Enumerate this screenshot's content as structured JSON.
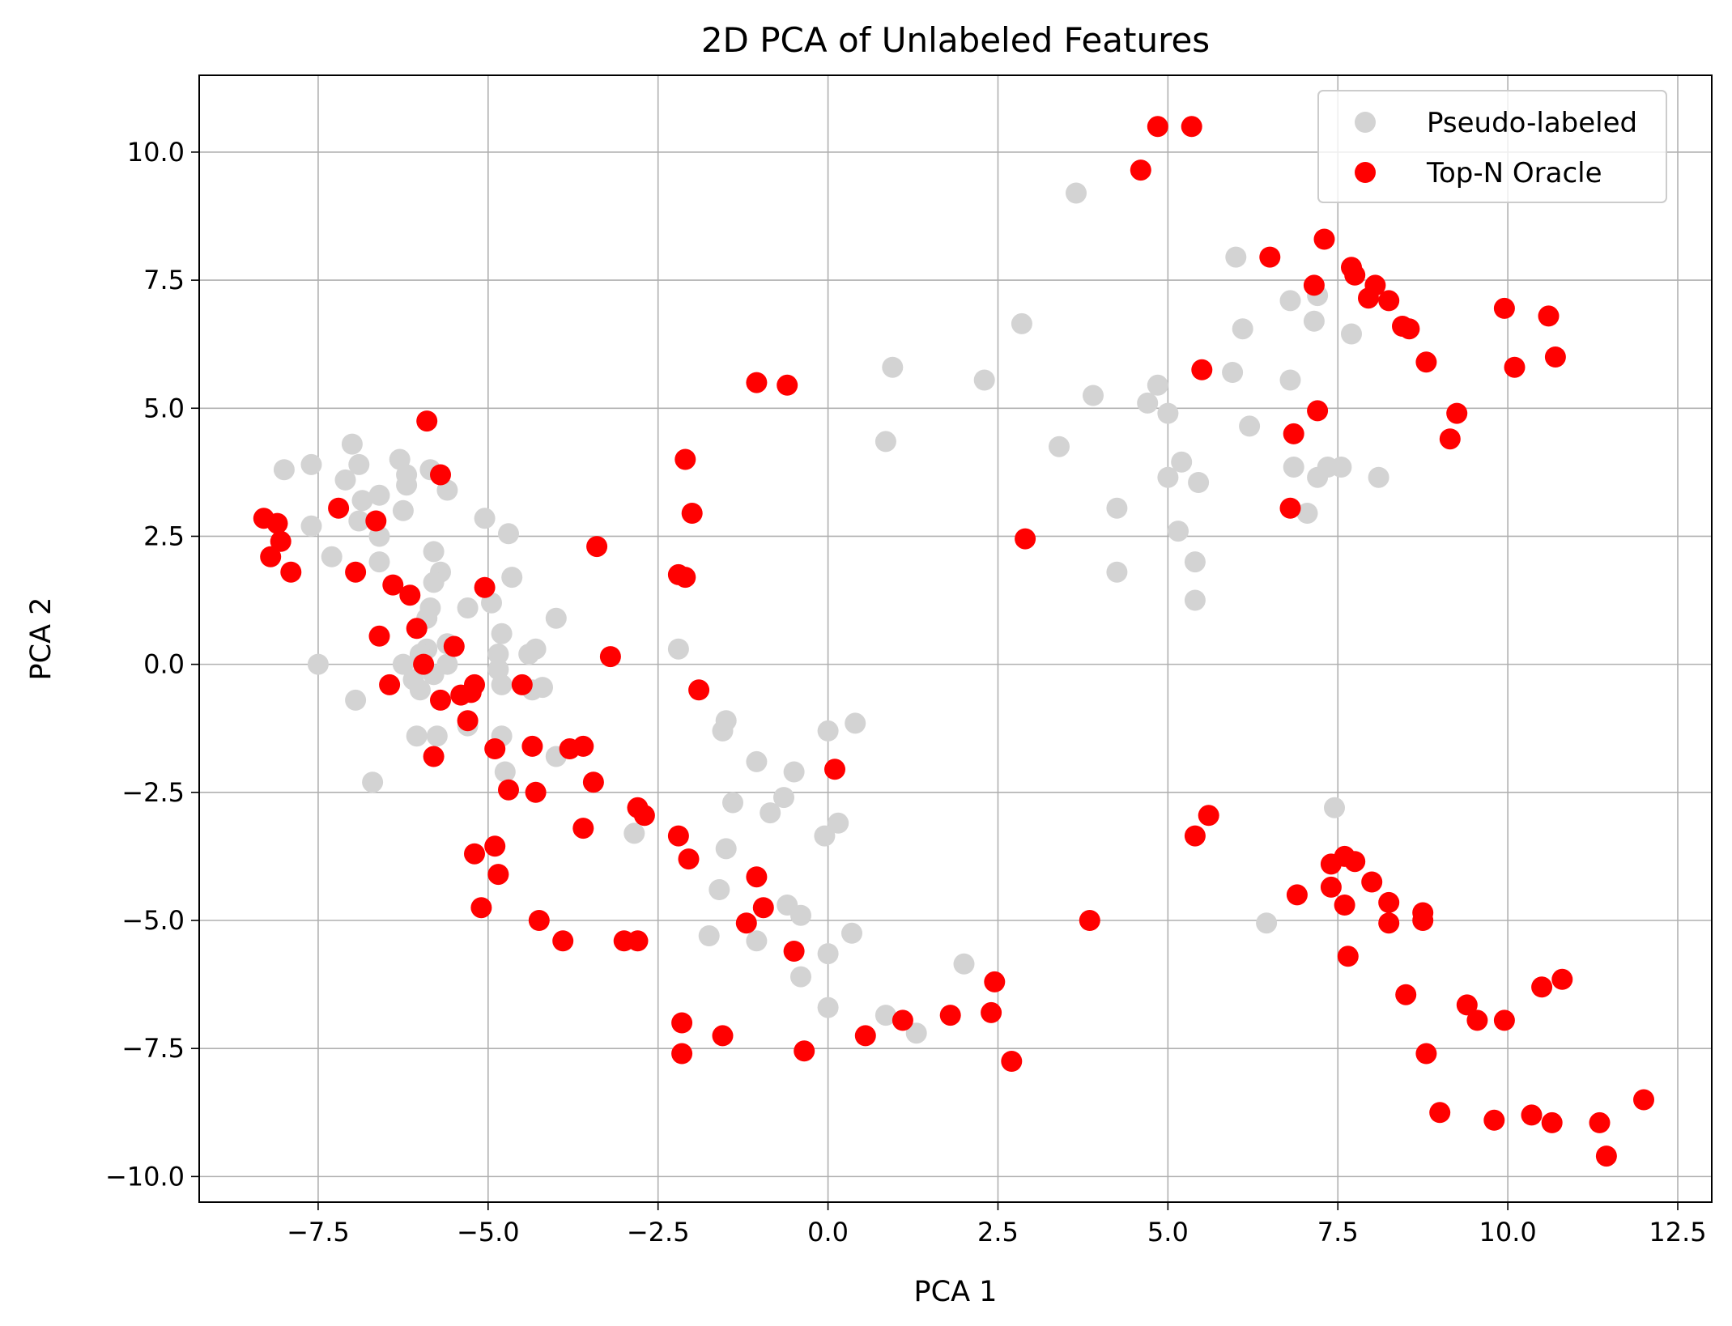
{
  "chart_data": {
    "type": "scatter",
    "title": "2D PCA of Unlabeled Features",
    "xlabel": "PCA 1",
    "ylabel": "PCA 2",
    "xlim": [
      -9.25,
      13.0
    ],
    "ylim": [
      -10.5,
      11.5
    ],
    "xticks": [
      -7.5,
      -5.0,
      -2.5,
      0.0,
      2.5,
      5.0,
      7.5,
      10.0,
      12.5
    ],
    "xtick_labels": [
      "−7.5",
      "−5.0",
      "−2.5",
      "0.0",
      "2.5",
      "5.0",
      "7.5",
      "10.0",
      "12.5"
    ],
    "yticks": [
      -10.0,
      -7.5,
      -5.0,
      -2.5,
      0.0,
      2.5,
      5.0,
      7.5,
      10.0
    ],
    "ytick_labels": [
      "−10.0",
      "−7.5",
      "−5.0",
      "−2.5",
      "0.0",
      "2.5",
      "5.0",
      "7.5",
      "10.0"
    ],
    "grid": true,
    "legend_position": "top-right",
    "series": [
      {
        "name": "Pseudo-labeled",
        "color": "#d3d3d3",
        "points": [
          [
            -8.0,
            3.8
          ],
          [
            -7.6,
            3.9
          ],
          [
            -7.6,
            2.7
          ],
          [
            -7.3,
            2.1
          ],
          [
            -7.1,
            3.6
          ],
          [
            -7.0,
            4.3
          ],
          [
            -6.9,
            3.9
          ],
          [
            -6.85,
            3.2
          ],
          [
            -6.9,
            2.8
          ],
          [
            -6.6,
            3.3
          ],
          [
            -6.6,
            2.0
          ],
          [
            -6.6,
            2.5
          ],
          [
            -6.3,
            4.0
          ],
          [
            -6.2,
            3.5
          ],
          [
            -6.2,
            3.7
          ],
          [
            -6.25,
            3.0
          ],
          [
            -5.85,
            3.8
          ],
          [
            -5.6,
            3.4
          ],
          [
            -5.8,
            2.2
          ],
          [
            -5.7,
            1.8
          ],
          [
            -5.8,
            1.6
          ],
          [
            -5.85,
            1.1
          ],
          [
            -5.9,
            0.9
          ],
          [
            -5.6,
            0.4
          ],
          [
            -5.9,
            0.3
          ],
          [
            -6.0,
            0.2
          ],
          [
            -6.25,
            0.0
          ],
          [
            -6.1,
            -0.3
          ],
          [
            -6.0,
            -0.5
          ],
          [
            -5.8,
            -0.2
          ],
          [
            -5.6,
            0.0
          ],
          [
            -5.3,
            1.1
          ],
          [
            -5.05,
            2.85
          ],
          [
            -4.95,
            1.2
          ],
          [
            -4.7,
            2.55
          ],
          [
            -4.65,
            1.7
          ],
          [
            -4.8,
            0.6
          ],
          [
            -4.85,
            0.2
          ],
          [
            -4.85,
            -0.1
          ],
          [
            -4.8,
            -0.4
          ],
          [
            -4.4,
            0.2
          ],
          [
            -4.3,
            0.3
          ],
          [
            -4.35,
            -0.5
          ],
          [
            -4.2,
            -0.45
          ],
          [
            -4.0,
            0.9
          ],
          [
            -4.0,
            -1.8
          ],
          [
            -4.8,
            -1.4
          ],
          [
            -4.75,
            -2.1
          ],
          [
            -6.05,
            -1.4
          ],
          [
            -5.75,
            -1.4
          ],
          [
            -6.7,
            -2.3
          ],
          [
            -6.95,
            -0.7
          ],
          [
            -7.5,
            0.0
          ],
          [
            -5.3,
            -1.2
          ],
          [
            -2.2,
            0.3
          ],
          [
            -2.85,
            -3.3
          ],
          [
            -1.5,
            -1.1
          ],
          [
            -1.55,
            -1.3
          ],
          [
            -1.05,
            -1.9
          ],
          [
            -1.4,
            -2.7
          ],
          [
            -1.5,
            -3.6
          ],
          [
            -1.6,
            -4.4
          ],
          [
            -1.75,
            -5.3
          ],
          [
            -1.05,
            -5.4
          ],
          [
            -0.85,
            -2.9
          ],
          [
            -0.65,
            -2.6
          ],
          [
            -0.5,
            -2.1
          ],
          [
            -0.6,
            -4.7
          ],
          [
            -0.4,
            -4.9
          ],
          [
            -0.4,
            -6.1
          ],
          [
            -0.05,
            -3.35
          ],
          [
            0.15,
            -3.1
          ],
          [
            0.0,
            -1.3
          ],
          [
            0.4,
            -1.15
          ],
          [
            0.35,
            -5.25
          ],
          [
            0.0,
            -5.65
          ],
          [
            0.0,
            -6.7
          ],
          [
            0.95,
            5.8
          ],
          [
            0.85,
            4.35
          ],
          [
            0.85,
            -6.85
          ],
          [
            1.3,
            -7.2
          ],
          [
            2.0,
            -5.85
          ],
          [
            2.3,
            5.55
          ],
          [
            2.85,
            6.65
          ],
          [
            3.4,
            4.25
          ],
          [
            3.65,
            9.2
          ],
          [
            3.9,
            5.25
          ],
          [
            4.25,
            3.05
          ],
          [
            4.25,
            1.8
          ],
          [
            4.7,
            5.1
          ],
          [
            4.85,
            5.45
          ],
          [
            5.0,
            4.9
          ],
          [
            5.0,
            3.65
          ],
          [
            5.2,
            3.95
          ],
          [
            5.15,
            2.6
          ],
          [
            5.45,
            3.55
          ],
          [
            5.4,
            2.0
          ],
          [
            5.4,
            1.25
          ],
          [
            6.0,
            7.95
          ],
          [
            6.1,
            6.55
          ],
          [
            5.95,
            5.7
          ],
          [
            6.2,
            4.65
          ],
          [
            6.8,
            7.1
          ],
          [
            6.8,
            5.55
          ],
          [
            6.85,
            3.85
          ],
          [
            7.05,
            2.95
          ],
          [
            7.2,
            7.2
          ],
          [
            7.15,
            6.7
          ],
          [
            7.2,
            3.65
          ],
          [
            7.35,
            3.85
          ],
          [
            7.55,
            3.85
          ],
          [
            7.7,
            6.45
          ],
          [
            8.1,
            3.65
          ],
          [
            7.45,
            -2.8
          ],
          [
            6.45,
            -5.05
          ]
        ]
      },
      {
        "name": "Top-N Oracle",
        "color": "#ff0000",
        "points": [
          [
            -8.3,
            2.85
          ],
          [
            -8.2,
            2.1
          ],
          [
            -8.1,
            2.75
          ],
          [
            -8.05,
            2.4
          ],
          [
            -7.9,
            1.8
          ],
          [
            -7.2,
            3.05
          ],
          [
            -6.95,
            1.8
          ],
          [
            -6.65,
            2.8
          ],
          [
            -6.6,
            0.55
          ],
          [
            -6.45,
            -0.4
          ],
          [
            -6.4,
            1.55
          ],
          [
            -6.15,
            1.35
          ],
          [
            -6.05,
            0.7
          ],
          [
            -5.95,
            0.0
          ],
          [
            -5.9,
            4.75
          ],
          [
            -5.8,
            -1.8
          ],
          [
            -5.7,
            3.7
          ],
          [
            -5.7,
            -0.7
          ],
          [
            -5.5,
            0.35
          ],
          [
            -5.4,
            -0.6
          ],
          [
            -5.25,
            -0.55
          ],
          [
            -5.2,
            -0.4
          ],
          [
            -5.3,
            -1.1
          ],
          [
            -5.2,
            -3.7
          ],
          [
            -5.05,
            1.5
          ],
          [
            -5.1,
            -4.75
          ],
          [
            -4.9,
            -1.65
          ],
          [
            -4.9,
            -3.55
          ],
          [
            -4.85,
            -4.1
          ],
          [
            -4.7,
            -2.45
          ],
          [
            -4.5,
            -0.4
          ],
          [
            -4.35,
            -1.6
          ],
          [
            -4.3,
            -2.5
          ],
          [
            -4.25,
            -5.0
          ],
          [
            -3.9,
            -5.4
          ],
          [
            -3.8,
            -1.65
          ],
          [
            -3.6,
            -1.6
          ],
          [
            -3.6,
            -3.2
          ],
          [
            -3.45,
            -2.3
          ],
          [
            -3.4,
            2.3
          ],
          [
            -3.2,
            0.15
          ],
          [
            -3.0,
            -5.4
          ],
          [
            -2.8,
            -5.4
          ],
          [
            -2.8,
            -2.8
          ],
          [
            -2.7,
            -2.95
          ],
          [
            -2.2,
            -3.35
          ],
          [
            -2.2,
            1.75
          ],
          [
            -2.1,
            1.7
          ],
          [
            -2.1,
            4.0
          ],
          [
            -2.05,
            -3.8
          ],
          [
            -2.0,
            2.95
          ],
          [
            -1.9,
            -0.5
          ],
          [
            -2.15,
            -7.0
          ],
          [
            -2.15,
            -7.6
          ],
          [
            -1.55,
            -7.25
          ],
          [
            -1.2,
            -5.05
          ],
          [
            -1.05,
            -4.15
          ],
          [
            -0.95,
            -4.75
          ],
          [
            -1.05,
            5.5
          ],
          [
            -0.6,
            5.45
          ],
          [
            -0.5,
            -5.6
          ],
          [
            -0.35,
            -7.55
          ],
          [
            0.1,
            -2.05
          ],
          [
            0.55,
            -7.25
          ],
          [
            1.1,
            -6.95
          ],
          [
            1.8,
            -6.85
          ],
          [
            2.4,
            -6.8
          ],
          [
            2.45,
            -6.2
          ],
          [
            2.7,
            -7.75
          ],
          [
            2.9,
            2.45
          ],
          [
            3.85,
            -5.0
          ],
          [
            4.6,
            9.65
          ],
          [
            4.85,
            10.5
          ],
          [
            5.35,
            10.5
          ],
          [
            5.4,
            -3.35
          ],
          [
            5.5,
            5.75
          ],
          [
            5.6,
            -2.95
          ],
          [
            6.5,
            7.95
          ],
          [
            6.8,
            3.05
          ],
          [
            6.85,
            4.5
          ],
          [
            6.9,
            -4.5
          ],
          [
            7.15,
            7.4
          ],
          [
            7.2,
            4.95
          ],
          [
            7.3,
            8.3
          ],
          [
            7.4,
            -3.9
          ],
          [
            7.4,
            -4.35
          ],
          [
            7.6,
            -4.7
          ],
          [
            7.6,
            -3.75
          ],
          [
            7.65,
            -5.7
          ],
          [
            7.7,
            7.75
          ],
          [
            7.75,
            7.6
          ],
          [
            7.75,
            -3.85
          ],
          [
            7.95,
            7.15
          ],
          [
            8.0,
            -4.25
          ],
          [
            8.05,
            7.4
          ],
          [
            8.25,
            7.1
          ],
          [
            8.25,
            -4.65
          ],
          [
            8.25,
            -5.05
          ],
          [
            8.45,
            6.6
          ],
          [
            8.5,
            -6.45
          ],
          [
            8.55,
            6.55
          ],
          [
            8.75,
            -4.85
          ],
          [
            8.75,
            -5.0
          ],
          [
            8.8,
            5.9
          ],
          [
            8.8,
            -7.6
          ],
          [
            9.0,
            -8.75
          ],
          [
            9.15,
            4.4
          ],
          [
            9.25,
            4.9
          ],
          [
            9.4,
            -6.65
          ],
          [
            9.55,
            -6.95
          ],
          [
            9.8,
            -8.9
          ],
          [
            9.95,
            6.95
          ],
          [
            9.95,
            -6.95
          ],
          [
            10.1,
            5.8
          ],
          [
            10.35,
            -8.8
          ],
          [
            10.5,
            -6.3
          ],
          [
            10.6,
            6.8
          ],
          [
            10.65,
            -8.95
          ],
          [
            10.7,
            6.0
          ],
          [
            10.8,
            -6.15
          ],
          [
            11.35,
            -8.95
          ],
          [
            11.45,
            -9.6
          ],
          [
            12.0,
            -8.5
          ]
        ]
      }
    ]
  }
}
